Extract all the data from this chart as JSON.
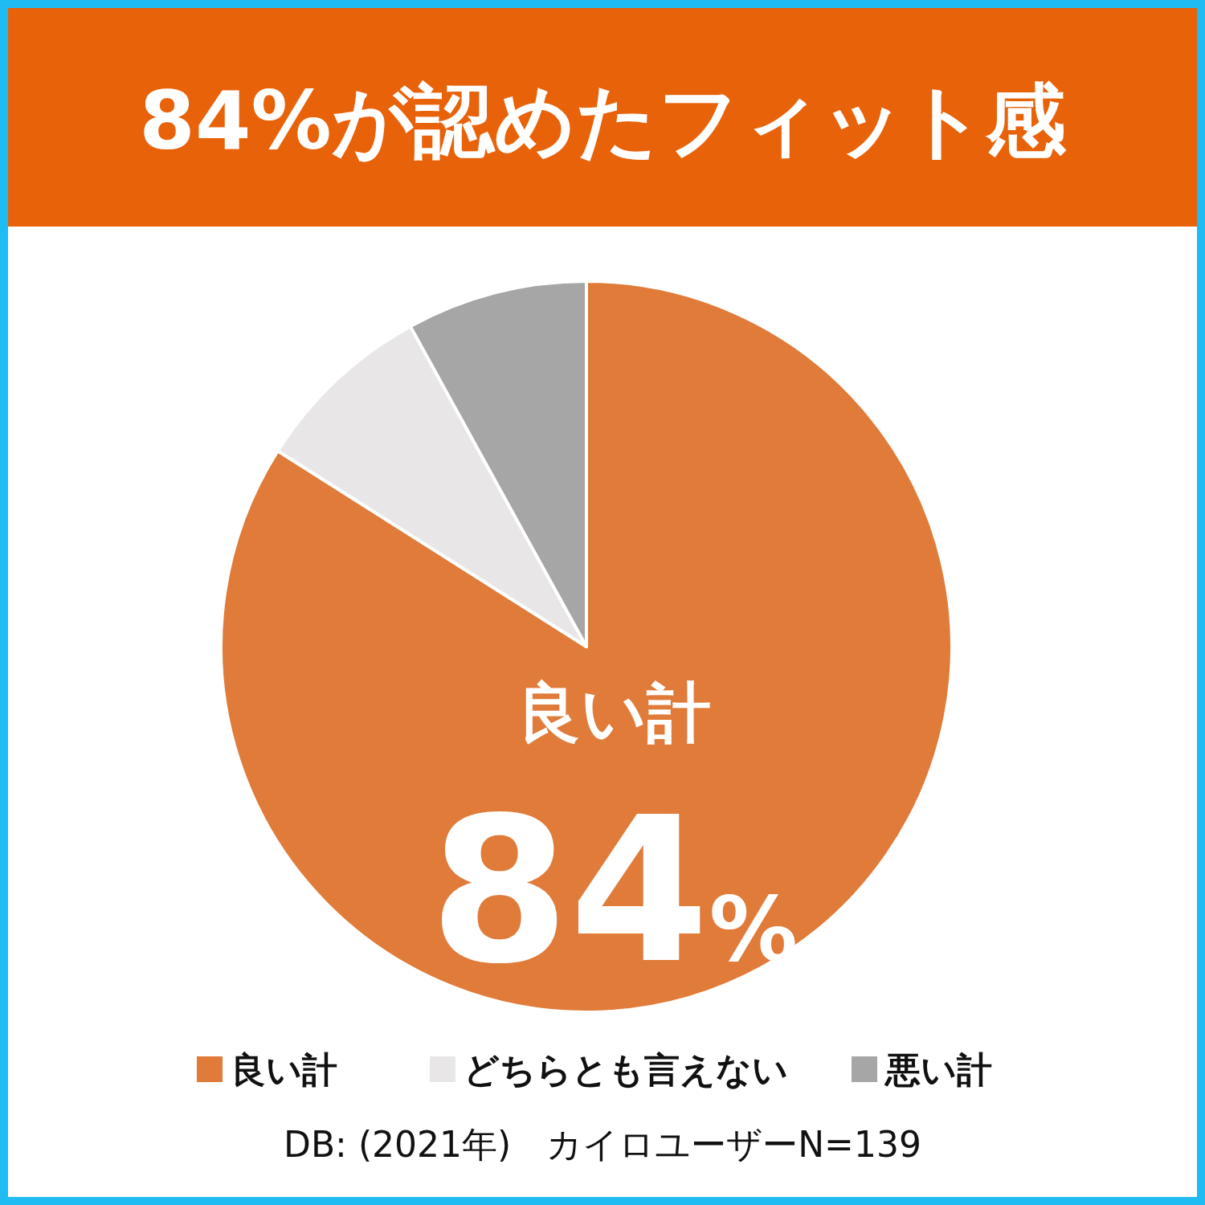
{
  "chart_data": {
    "type": "pie",
    "title": "84%が認めたフィット感",
    "categories": [
      "良い計",
      "どちらとも言えない",
      "悪い計"
    ],
    "values": [
      84,
      8,
      8
    ],
    "colors": [
      "#e07b39",
      "#e8e6e6",
      "#a6a6a6"
    ],
    "value_labels": [
      "84%",
      null,
      null
    ],
    "legend": "bottom",
    "annotations": [
      "DB: (2021年)　カイロユーザーN=139"
    ]
  }
}
